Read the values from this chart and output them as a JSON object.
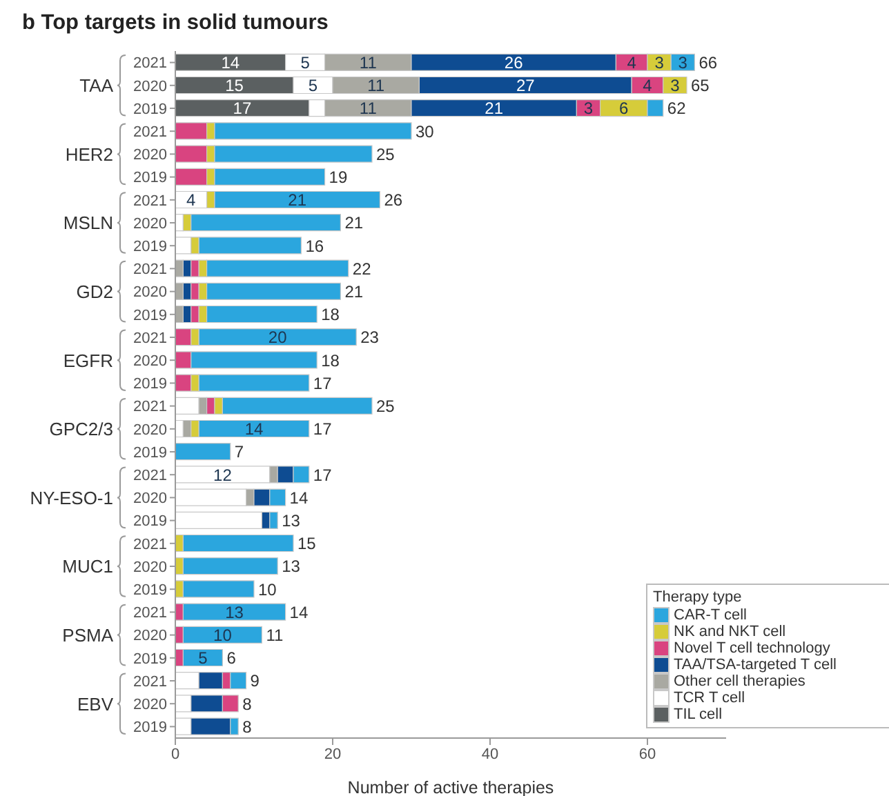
{
  "chart_data": {
    "type": "bar",
    "orientation": "horizontal",
    "stacked": true,
    "title": "b Top targets in solid tumours",
    "xlabel": "Number of active therapies",
    "legend_title": "Therapy type",
    "legend": "bottom right",
    "categories": [
      "2021",
      "2020",
      "2019",
      "2021",
      "2020",
      "2019",
      "2021",
      "2020",
      "2019",
      "2021",
      "2020",
      "2019",
      "2021",
      "2020",
      "2019",
      "2021",
      "2020",
      "2019",
      "2021",
      "2020",
      "2019",
      "2021",
      "2020",
      "2019",
      "2021",
      "2020",
      "2019",
      "2021",
      "2020",
      "2019"
    ],
    "annotations": [
      "TAA",
      "HER2",
      "MSLN",
      "GD2",
      "EGFR",
      "GPC2/3",
      "NY-ESO-1",
      "MUC1",
      "PSMA",
      "EBV"
    ],
    "xlim": [
      0,
      70
    ],
    "xticks": [
      0,
      20,
      40,
      60
    ],
    "series": [
      {
        "name": "TIL cell",
        "color": "#5b6061",
        "values": [
          14,
          15,
          17,
          null,
          null,
          null,
          null,
          null,
          null,
          null,
          null,
          null,
          null,
          null,
          null,
          null,
          null,
          null,
          null,
          null,
          null,
          null,
          null,
          null,
          null,
          null,
          null,
          null,
          null,
          null
        ],
        "value_labels": [
          "14",
          "15",
          "17",
          null,
          null,
          null,
          null,
          null,
          null,
          null,
          null,
          null,
          null,
          null,
          null,
          null,
          null,
          null,
          null,
          null,
          null,
          null,
          null,
          null,
          null,
          null,
          null,
          null,
          null,
          null
        ]
      },
      {
        "name": "TCR T cell",
        "color": "#ffffff",
        "values": [
          5,
          5,
          2,
          null,
          null,
          null,
          4,
          1,
          2,
          null,
          null,
          null,
          null,
          null,
          null,
          3,
          1,
          null,
          12,
          9,
          11,
          null,
          null,
          null,
          null,
          null,
          null,
          3,
          2,
          2
        ],
        "value_labels": [
          "5",
          "5",
          null,
          null,
          null,
          null,
          "4",
          null,
          null,
          null,
          null,
          null,
          null,
          null,
          null,
          null,
          null,
          null,
          "12",
          null,
          null,
          null,
          null,
          null,
          null,
          null,
          null,
          null,
          null,
          null
        ]
      },
      {
        "name": "Other cell therapies",
        "color": "#a9a9a2",
        "values": [
          11,
          11,
          11,
          null,
          null,
          null,
          null,
          null,
          null,
          1,
          1,
          1,
          null,
          null,
          null,
          1,
          1,
          null,
          1,
          1,
          null,
          null,
          null,
          null,
          null,
          null,
          null,
          null,
          null,
          null
        ],
        "value_labels": [
          "11",
          "11",
          "11",
          null,
          null,
          null,
          null,
          null,
          null,
          null,
          null,
          null,
          null,
          null,
          null,
          null,
          null,
          null,
          null,
          null,
          null,
          null,
          null,
          null,
          null,
          null,
          null,
          null,
          null,
          null
        ]
      },
      {
        "name": "TAA/TSA-targeted T cell",
        "color": "#0e4c92",
        "values": [
          26,
          27,
          21,
          null,
          null,
          null,
          null,
          null,
          null,
          1,
          1,
          1,
          null,
          null,
          null,
          null,
          null,
          null,
          2,
          2,
          1,
          null,
          null,
          null,
          null,
          null,
          null,
          3,
          4,
          5
        ],
        "value_labels": [
          "26",
          "27",
          "21",
          null,
          null,
          null,
          null,
          null,
          null,
          null,
          null,
          null,
          null,
          null,
          null,
          null,
          null,
          null,
          null,
          null,
          null,
          null,
          null,
          null,
          null,
          null,
          null,
          null,
          null,
          null
        ]
      },
      {
        "name": "Novel T cell technology",
        "color": "#d94480",
        "values": [
          4,
          4,
          3,
          4,
          4,
          4,
          null,
          null,
          null,
          1,
          1,
          1,
          2,
          2,
          2,
          1,
          null,
          null,
          null,
          null,
          null,
          null,
          null,
          null,
          1,
          1,
          1,
          1,
          2,
          null
        ],
        "value_labels": [
          "4",
          "4",
          "3",
          null,
          null,
          null,
          null,
          null,
          null,
          null,
          null,
          null,
          null,
          null,
          null,
          null,
          null,
          null,
          null,
          null,
          null,
          null,
          null,
          null,
          null,
          null,
          null,
          null,
          null,
          null
        ]
      },
      {
        "name": "NK and NKT cell",
        "color": "#d6cc3a",
        "values": [
          3,
          3,
          6,
          1,
          1,
          1,
          1,
          1,
          1,
          1,
          1,
          1,
          1,
          null,
          1,
          1,
          1,
          null,
          null,
          null,
          null,
          1,
          1,
          1,
          null,
          null,
          null,
          null,
          null,
          null
        ],
        "value_labels": [
          "3",
          "3",
          "6",
          null,
          null,
          null,
          null,
          null,
          null,
          null,
          null,
          null,
          null,
          null,
          null,
          null,
          null,
          null,
          null,
          null,
          null,
          null,
          null,
          null,
          null,
          null,
          null,
          null,
          null,
          null
        ]
      },
      {
        "name": "CAR-T cell",
        "color": "#2ba6de",
        "values": [
          3,
          null,
          2,
          25,
          20,
          14,
          21,
          19,
          13,
          18,
          17,
          14,
          20,
          16,
          14,
          19,
          14,
          7,
          2,
          2,
          1,
          14,
          12,
          9,
          13,
          10,
          5,
          2,
          null,
          1
        ],
        "value_labels": [
          "3",
          null,
          null,
          null,
          null,
          null,
          "21",
          null,
          null,
          null,
          null,
          null,
          "20",
          null,
          null,
          null,
          "14",
          null,
          null,
          null,
          null,
          null,
          null,
          null,
          "13",
          "10",
          "5",
          null,
          null,
          null
        ]
      }
    ],
    "totals": [
      "66",
      "65",
      "62",
      "30",
      "25",
      "19",
      "26",
      "21",
      "16",
      "22",
      "21",
      "18",
      "23",
      "18",
      "17",
      "25",
      "17",
      "7",
      "17",
      "14",
      "13",
      "15",
      "13",
      "10",
      "14",
      "11",
      "6",
      "9",
      "8",
      "8"
    ]
  }
}
